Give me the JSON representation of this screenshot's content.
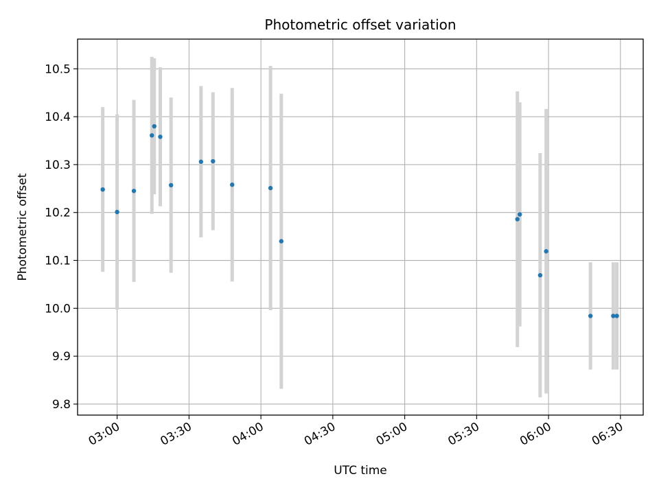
{
  "chart_data": {
    "type": "scatter",
    "title": "Photometric offset variation",
    "xlabel": "UTC time",
    "ylabel": "Photometric offset",
    "x_ticks": [
      "03:00",
      "03:30",
      "04:00",
      "04:30",
      "05:00",
      "05:30",
      "06:00",
      "06:30"
    ],
    "y_ticks": [
      "9.8",
      "9.9",
      "10.0",
      "10.1",
      "10.2",
      "10.3",
      "10.4",
      "10.5"
    ],
    "xlim": [
      "02:43:30",
      "06:39:30"
    ],
    "ylim": [
      9.777,
      10.562
    ],
    "grid": true,
    "marker_color": "#1f77b4",
    "errorbar_color": "#d3d3d3",
    "points": [
      {
        "x": "02:54:00",
        "y": 10.248,
        "err": 0.172
      },
      {
        "x": "03:00:00",
        "y": 10.201,
        "err": 0.204
      },
      {
        "x": "03:07:00",
        "y": 10.245,
        "err": 0.19
      },
      {
        "x": "03:14:30",
        "y": 10.361,
        "err": 0.164
      },
      {
        "x": "03:15:30",
        "y": 10.38,
        "err": 0.142
      },
      {
        "x": "03:18:00",
        "y": 10.358,
        "err": 0.145
      },
      {
        "x": "03:22:30",
        "y": 10.257,
        "err": 0.183
      },
      {
        "x": "03:35:00",
        "y": 10.306,
        "err": 0.158
      },
      {
        "x": "03:40:00",
        "y": 10.307,
        "err": 0.144
      },
      {
        "x": "03:48:00",
        "y": 10.258,
        "err": 0.202
      },
      {
        "x": "04:04:00",
        "y": 10.251,
        "err": 0.255
      },
      {
        "x": "04:08:30",
        "y": 10.14,
        "err": 0.308
      },
      {
        "x": "05:47:00",
        "y": 10.186,
        "err": 0.267
      },
      {
        "x": "05:48:00",
        "y": 10.196,
        "err": 0.234
      },
      {
        "x": "05:56:30",
        "y": 10.069,
        "err": 0.255
      },
      {
        "x": "05:59:00",
        "y": 10.119,
        "err": 0.297
      },
      {
        "x": "06:17:30",
        "y": 9.984,
        "err": 0.112
      },
      {
        "x": "06:27:00",
        "y": 9.984,
        "err": 0.112
      },
      {
        "x": "06:28:30",
        "y": 9.984,
        "err": 0.112
      }
    ]
  }
}
